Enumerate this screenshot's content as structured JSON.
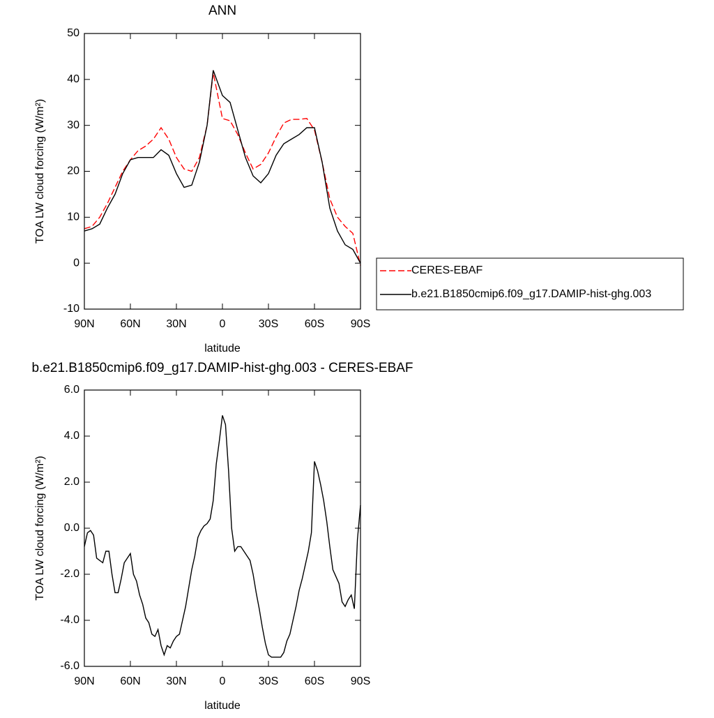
{
  "chart_data": [
    {
      "type": "line",
      "title": "ANN",
      "xlabel": "latitude",
      "ylabel": "TOA LW cloud forcing (W/m²)",
      "x": [
        90,
        85,
        80,
        75,
        70,
        65,
        60,
        55,
        50,
        45,
        40,
        35,
        30,
        25,
        20,
        15,
        10,
        6,
        0,
        -5,
        -10,
        -15,
        -20,
        -25,
        -30,
        -35,
        -40,
        -45,
        -50,
        -55,
        -60,
        -65,
        -70,
        -75,
        -80,
        -85,
        -90
      ],
      "series": [
        {
          "name": "CERES-EBAF",
          "color": "#ff0000",
          "linestyle": "dashed",
          "values": [
            7.5,
            8,
            10,
            13,
            16.5,
            20,
            22.5,
            24.5,
            25.5,
            27,
            29.5,
            27,
            23,
            20.5,
            20,
            23,
            30,
            41.5,
            31.5,
            31,
            28,
            24,
            20.5,
            21.5,
            24,
            27.5,
            30.5,
            31.3,
            31.3,
            31.5,
            29,
            22,
            14,
            10,
            8,
            6.5,
            -0.5
          ]
        },
        {
          "name": "b.e21.B1850cmip6.f09_g17.DAMIP-hist-ghg.003",
          "color": "#000000",
          "linestyle": "solid",
          "values": [
            7,
            7.5,
            8.5,
            12,
            15,
            19.5,
            22.5,
            23,
            23,
            23,
            24.7,
            23.5,
            19.5,
            16.5,
            17,
            22,
            30,
            42,
            36.5,
            35,
            29,
            23,
            19,
            17.5,
            19.5,
            23.5,
            26,
            27,
            28,
            29.5,
            29.5,
            22,
            12,
            7,
            4,
            3,
            0
          ]
        }
      ],
      "xlim": [
        90,
        -90
      ],
      "xticks": [
        {
          "value": 90,
          "label": "90N"
        },
        {
          "value": 60,
          "label": "60N"
        },
        {
          "value": 30,
          "label": "30N"
        },
        0,
        {
          "value": -30,
          "label": "30S"
        },
        {
          "value": -60,
          "label": "60S"
        },
        {
          "value": -90,
          "label": "90S"
        }
      ],
      "ylim": [
        -10,
        50
      ],
      "yticks": [
        -10,
        0,
        10,
        20,
        30,
        40,
        50
      ],
      "legend": "right"
    },
    {
      "type": "line",
      "title": "b.e21.B1850cmip6.f09_g17.DAMIP-hist-ghg.003 - CERES-EBAF",
      "xlabel": "latitude",
      "ylabel": "TOA LW cloud forcing (W/m²)",
      "x": [
        90,
        88,
        86,
        84,
        82,
        80,
        78,
        76,
        74,
        72,
        70,
        68,
        66,
        64,
        62,
        60,
        58,
        56,
        54,
        52,
        50,
        48,
        46,
        44,
        42,
        40,
        38,
        36,
        34,
        32,
        30,
        28,
        26,
        24,
        22,
        20,
        18,
        16,
        14,
        12,
        10,
        8,
        6,
        4,
        2,
        0,
        -2,
        -4,
        -6,
        -8,
        -10,
        -12,
        -14,
        -16,
        -18,
        -20,
        -22,
        -24,
        -26,
        -28,
        -30,
        -32,
        -34,
        -36,
        -38,
        -40,
        -42,
        -44,
        -46,
        -48,
        -50,
        -52,
        -54,
        -56,
        -58,
        -60,
        -62,
        -64,
        -66,
        -68,
        -70,
        -72,
        -74,
        -76,
        -78,
        -80,
        -82,
        -84,
        -86,
        -88,
        -90
      ],
      "series": [
        {
          "color": "#000000",
          "linestyle": "solid",
          "values": [
            -0.8,
            -0.2,
            -0.1,
            -0.3,
            -1.3,
            -1.4,
            -1.5,
            -1.0,
            -1.0,
            -2.0,
            -2.8,
            -2.8,
            -2.2,
            -1.5,
            -1.3,
            -1.1,
            -2.0,
            -2.3,
            -2.9,
            -3.3,
            -3.9,
            -4.1,
            -4.6,
            -4.7,
            -4.4,
            -5.1,
            -5.5,
            -5.1,
            -5.2,
            -4.9,
            -4.7,
            -4.6,
            -4.0,
            -3.4,
            -2.6,
            -1.8,
            -1.2,
            -0.4,
            -0.1,
            0.1,
            0.2,
            0.4,
            1.2,
            2.8,
            3.8,
            4.9,
            4.5,
            2.5,
            0.0,
            -1.0,
            -0.8,
            -0.8,
            -1.0,
            -1.2,
            -1.4,
            -2.0,
            -2.8,
            -3.5,
            -4.3,
            -5.0,
            -5.5,
            -5.6,
            -5.6,
            -5.6,
            -5.6,
            -5.4,
            -4.9,
            -4.6,
            -4.0,
            -3.4,
            -2.7,
            -2.2,
            -1.6,
            -1.0,
            -0.2,
            2.9,
            2.5,
            1.9,
            1.2,
            0.3,
            -0.8,
            -1.8,
            -2.1,
            -2.4,
            -3.2,
            -3.4,
            -3.1,
            -2.9,
            -3.5,
            -0.5,
            1.0
          ]
        }
      ],
      "xlim": [
        90,
        -90
      ],
      "xticks": [
        {
          "value": 90,
          "label": "90N"
        },
        {
          "value": 60,
          "label": "60N"
        },
        {
          "value": 30,
          "label": "30N"
        },
        0,
        {
          "value": -30,
          "label": "30S"
        },
        {
          "value": -60,
          "label": "60S"
        },
        {
          "value": -90,
          "label": "90S"
        }
      ],
      "ylim": [
        -6,
        6
      ],
      "yticks": [
        {
          "value": -6,
          "label": "-6.0"
        },
        {
          "value": -4,
          "label": "-4.0"
        },
        {
          "value": -2,
          "label": "-2.0"
        },
        {
          "value": 0,
          "label": "0.0"
        },
        {
          "value": 2,
          "label": "2.0"
        },
        {
          "value": 4,
          "label": "4.0"
        },
        {
          "value": 6,
          "label": "6.0"
        }
      ]
    }
  ]
}
